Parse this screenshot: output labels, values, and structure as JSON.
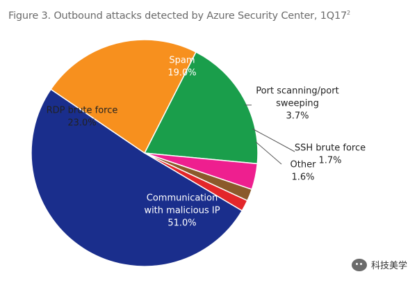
{
  "title": {
    "text": "Figure 3. Outbound attacks detected by Azure Security Center, 1Q17",
    "footnote": "2"
  },
  "watermark": {
    "icon": "wechat-icon",
    "text": "科技美学"
  },
  "chart_data": {
    "type": "pie",
    "title": "Figure 3. Outbound attacks detected by Azure Security Center, 1Q17",
    "slices": [
      {
        "label": [
          "Spam"
        ],
        "value": 19.0,
        "display": "19.0%",
        "color": "#1a9e4b",
        "label_color": "#ffffff"
      },
      {
        "label": [
          "Port scanning/port",
          "sweeping"
        ],
        "value": 3.7,
        "display": "3.7%",
        "color": "#ee1f8f",
        "label_color": "#222222"
      },
      {
        "label": [
          "SSH brute force"
        ],
        "value": 1.7,
        "display": "1.7%",
        "color": "#8b5a2b",
        "label_color": "#222222"
      },
      {
        "label": [
          "Other"
        ],
        "value": 1.6,
        "display": "1.6%",
        "color": "#e3262a",
        "label_color": "#222222"
      },
      {
        "label": [
          "Communication",
          "with malicious IP"
        ],
        "value": 51.0,
        "display": "51.0%",
        "color": "#1a2e8c",
        "label_color": "#ffffff"
      },
      {
        "label": [
          "RDP brute force"
        ],
        "value": 23.0,
        "display": "23.0%",
        "color": "#f7901e",
        "label_color": "#222222"
      }
    ],
    "legend": "none"
  }
}
